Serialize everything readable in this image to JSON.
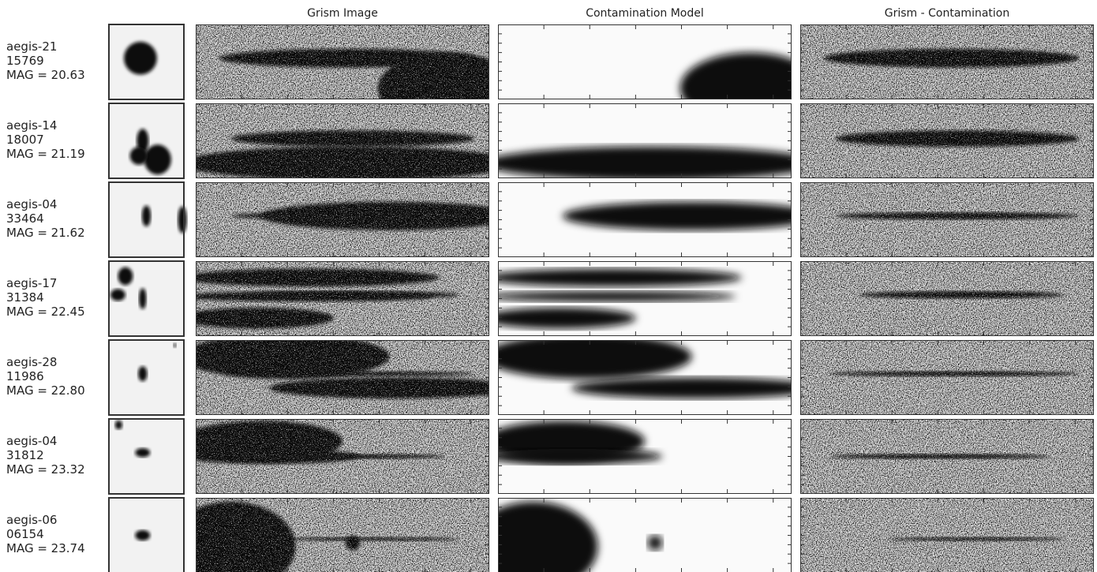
{
  "header": {
    "columns": [
      "Grism Image",
      "Contamination Model",
      "Grism - Contamination"
    ]
  },
  "rows": [
    {
      "field": "aegis-21",
      "id": "15769",
      "mag": "MAG = 20.63"
    },
    {
      "field": "aegis-14",
      "id": "18007",
      "mag": "MAG = 21.19"
    },
    {
      "field": "aegis-04",
      "id": "33464",
      "mag": "MAG = 21.62"
    },
    {
      "field": "aegis-17",
      "id": "31384",
      "mag": "MAG = 22.45"
    },
    {
      "field": "aegis-28",
      "id": "11986",
      "mag": "MAG = 22.80"
    },
    {
      "field": "aegis-04",
      "id": "31812",
      "mag": "MAG = 23.32"
    },
    {
      "field": "aegis-06",
      "id": "06154",
      "mag": "MAG = 23.74"
    }
  ]
}
